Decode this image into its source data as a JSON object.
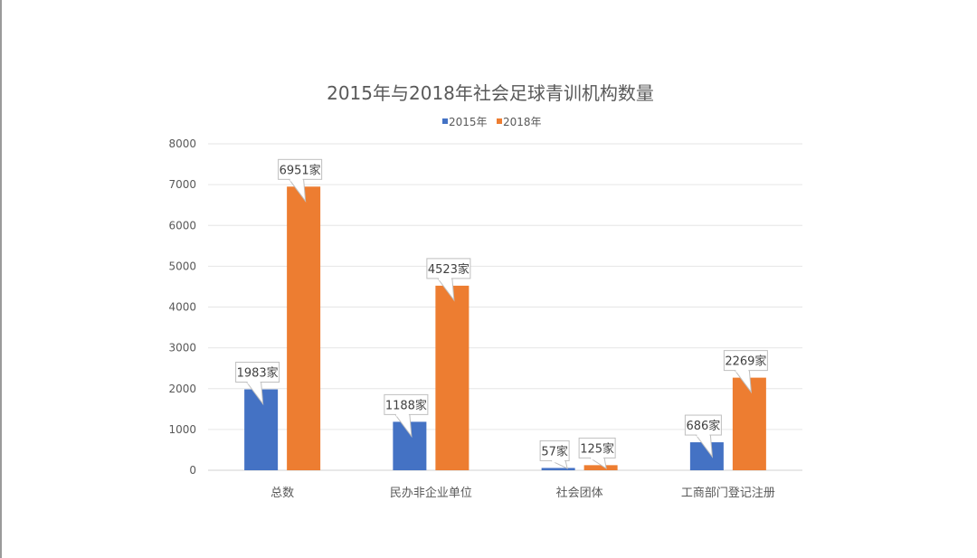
{
  "chart_data": {
    "type": "bar",
    "title": "2015年与2018年社会足球青训机构数量",
    "categories": [
      "总数",
      "民办非企业单位",
      "社会团体",
      "工商部门登记注册"
    ],
    "series": [
      {
        "name": "2015年",
        "values": [
          1983,
          1188,
          57,
          686
        ],
        "labels": [
          "1983家",
          "1188家",
          "57家",
          "686家"
        ],
        "color": "#4472C4"
      },
      {
        "name": "2018年",
        "values": [
          6951,
          4523,
          125,
          2269
        ],
        "labels": [
          "6951家",
          "4523家",
          "125家",
          "2269家"
        ],
        "color": "#ED7D31"
      }
    ],
    "ylim": [
      0,
      8000
    ],
    "yticks": [
      0,
      1000,
      2000,
      3000,
      4000,
      5000,
      6000,
      7000,
      8000
    ],
    "grid": true,
    "legend": "top"
  }
}
